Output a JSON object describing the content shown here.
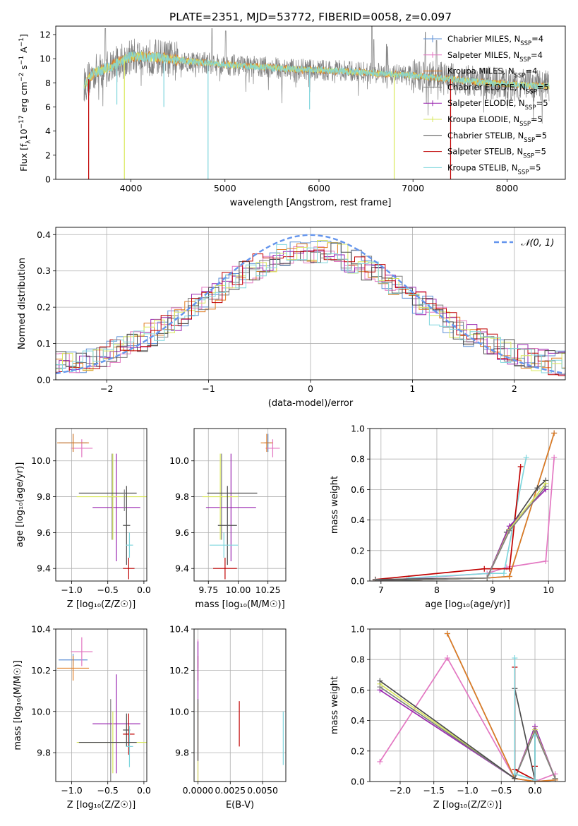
{
  "figure": {
    "title": "PLATE=2351, MJD=53772, FIBERID=0058, z=0.097"
  },
  "colors": {
    "chabrier_miles": "#5b8fd6",
    "salpeter_miles": "#e377c2",
    "kroupa_miles": "#e07b1f",
    "chabrier_elodie": "#7f7f7f",
    "salpeter_elodie": "#9a27b0",
    "kroupa_elodie": "#d9e85c",
    "chabrier_stelib": "#4d4d4d",
    "salpeter_stelib": "#c00000",
    "kroupa_stelib": "#7fd6dd",
    "normal_curve": "#6495ed",
    "grid": "#b0b0b0"
  },
  "chart_data": [
    {
      "type": "line",
      "id": "spectrum",
      "xlabel": "wavelength [Angstrom, rest frame]",
      "ylabel_parts": [
        "Flux [f",
        "λ",
        "10",
        "−17",
        " erg cm",
        "−2",
        " s",
        "−1",
        " A",
        "−1",
        "]"
      ],
      "xlim": [
        3200,
        8620
      ],
      "ylim": [
        0,
        12.7
      ],
      "xticks": [
        4000,
        5000,
        6000,
        7000,
        8000
      ],
      "yticks": [
        0,
        2,
        4,
        6,
        8,
        10,
        12
      ],
      "grid": false,
      "legend_placement": "top-right",
      "legend": [
        {
          "label": "Chabrier MILES, N",
          "sub": "SSP",
          "tail": "=4",
          "color_key": "chabrier_miles",
          "marker": "|"
        },
        {
          "label": "Salpeter MILES, N",
          "sub": "SSP",
          "tail": "=4",
          "color_key": "salpeter_miles",
          "marker": "+"
        },
        {
          "label": "Kroupa MILES, N",
          "sub": "SSP",
          "tail": "=4",
          "color_key": "kroupa_miles",
          "marker": ""
        },
        {
          "label": "Chabrier ELODIE, N",
          "sub": "SSP",
          "tail": "=5",
          "color_key": "chabrier_elodie",
          "marker": ""
        },
        {
          "label": "Salpeter ELODIE, N",
          "sub": "SSP",
          "tail": "=5",
          "color_key": "salpeter_elodie",
          "marker": "+"
        },
        {
          "label": "Kroupa ELODIE, N",
          "sub": "SSP",
          "tail": "=5",
          "color_key": "kroupa_elodie",
          "marker": "+"
        },
        {
          "label": "Chabrier STELIB, N",
          "sub": "SSP",
          "tail": "=5",
          "color_key": "chabrier_stelib",
          "marker": ""
        },
        {
          "label": "Salpeter STELIB, N",
          "sub": "SSP",
          "tail": "=5",
          "color_key": "salpeter_stelib",
          "marker": ""
        },
        {
          "label": "Kroupa STELIB, N",
          "sub": "SSP",
          "tail": "=5",
          "color_key": "kroupa_stelib",
          "marker": ""
        }
      ],
      "data_range": [
        3500,
        8450
      ],
      "continuum": [
        [
          3480,
          7.6
        ],
        [
          3600,
          8.8
        ],
        [
          3800,
          9.4
        ],
        [
          4000,
          10.2
        ],
        [
          4300,
          10.1
        ],
        [
          4600,
          9.8
        ],
        [
          5000,
          9.5
        ],
        [
          5400,
          9.3
        ],
        [
          5800,
          9.1
        ],
        [
          6200,
          9.0
        ],
        [
          6600,
          8.8
        ],
        [
          7000,
          8.6
        ],
        [
          7400,
          8.3
        ],
        [
          7800,
          8.0
        ],
        [
          8200,
          7.8
        ],
        [
          8450,
          7.7
        ]
      ],
      "noise_amplitude": 1.2,
      "emission_lines": [
        [
          3727,
          12.5
        ],
        [
          4861,
          12.5
        ],
        [
          5007,
          12.3
        ],
        [
          6563,
          12.7
        ],
        [
          6583,
          11.6
        ],
        [
          6717,
          11.2
        ],
        [
          6731,
          11.0
        ],
        [
          7130,
          12.2
        ],
        [
          7250,
          11.5
        ]
      ],
      "dips": [
        {
          "x": 3550,
          "min": 0.0,
          "color_key": "salpeter_stelib"
        },
        {
          "x": 3930,
          "min": 0.0,
          "color_key": "kroupa_elodie"
        },
        {
          "x": 4820,
          "min": 0.0,
          "color_key": "kroupa_stelib"
        },
        {
          "x": 6800,
          "min": 0.0,
          "color_key": "kroupa_elodie"
        },
        {
          "x": 7400,
          "min": 0.0,
          "color_key": "salpeter_stelib"
        },
        {
          "x": 4350,
          "min": 6.0,
          "color_key": "kroupa_stelib"
        },
        {
          "x": 5900,
          "min": 5.8,
          "color_key": "kroupa_stelib"
        },
        {
          "x": 3850,
          "min": 6.2,
          "color_key": "kroupa_stelib"
        }
      ]
    },
    {
      "type": "line",
      "id": "residual_histogram",
      "xlabel": "(data-model)/error",
      "ylabel": "Normed distribution",
      "xlim": [
        -2.5,
        2.5
      ],
      "ylim": [
        0,
        0.42
      ],
      "xticks": [
        -2,
        -1,
        0,
        1,
        2
      ],
      "yticks": [
        0.0,
        0.1,
        0.2,
        0.3,
        0.4
      ],
      "grid": true,
      "legend_placement": "top-right",
      "legend": [
        {
          "label": "𝒩(0, 1)",
          "color_key": "normal_curve",
          "style": "dashed"
        }
      ],
      "bin_width": 0.1,
      "series_color_keys": [
        "chabrier_miles",
        "salpeter_miles",
        "kroupa_miles",
        "chabrier_elodie",
        "salpeter_elodie",
        "kroupa_elodie",
        "chabrier_stelib",
        "salpeter_stelib",
        "kroupa_stelib"
      ],
      "jitter": 0.035
    },
    {
      "type": "scatter",
      "id": "age_vs_Z",
      "xlabel": "Z [log₁₀(Z/Z☉)]",
      "ylabel": "age  [log₁₀(age/yr)]",
      "xlim": [
        -1.22,
        0.04
      ],
      "ylim": [
        9.33,
        10.18
      ],
      "xticks": [
        -1.0,
        -0.5,
        0.0
      ],
      "yticks": [
        9.4,
        9.6,
        9.8,
        10.0
      ],
      "grid": true,
      "points": [
        {
          "color_key": "chabrier_miles",
          "x": -0.98,
          "y": 10.1,
          "xerr": 0.2,
          "yerr": 0.05
        },
        {
          "color_key": "salpeter_miles",
          "x": -0.86,
          "y": 10.07,
          "xerr": 0.15,
          "yerr": 0.05
        },
        {
          "color_key": "kroupa_miles",
          "x": -0.98,
          "y": 10.1,
          "xerr": 0.22,
          "yerr": 0.05
        },
        {
          "color_key": "chabrier_elodie",
          "x": -0.44,
          "y": 9.8,
          "xerr": 0.05,
          "yerr": 0.24
        },
        {
          "color_key": "salpeter_elodie",
          "x": -0.38,
          "y": 9.74,
          "xerr": 0.33,
          "yerr": 0.3
        },
        {
          "color_key": "kroupa_elodie",
          "x": -0.43,
          "y": 9.8,
          "xerr": 0.5,
          "yerr": 0.24
        },
        {
          "color_key": "chabrier_stelib",
          "x": -0.24,
          "y": 9.64,
          "xerr": 0.05,
          "yerr": 0.22
        },
        {
          "color_key": "salpeter_stelib",
          "x": -0.21,
          "y": 9.4,
          "xerr": 0.08,
          "yerr": 0.06
        },
        {
          "color_key": "kroupa_stelib",
          "x": -0.2,
          "y": 9.53,
          "xerr": 0.05,
          "yerr": 0.07
        },
        {
          "color_key": "chabrier_stelib",
          "x": -0.5,
          "y": 9.82,
          "xerr": 0.4,
          "yerr": 0.0
        },
        {
          "color_key": "chabrier_elodie",
          "x": -0.27,
          "y": 9.78,
          "xerr": 0.0,
          "yerr": 0.06
        }
      ]
    },
    {
      "type": "scatter",
      "id": "age_vs_mass",
      "xlabel": "mass [log₁₀(M/M☉)]",
      "ylabel": "",
      "xlim": [
        9.63,
        10.4
      ],
      "ylim": [
        9.33,
        10.18
      ],
      "xticks": [
        9.75,
        10.0,
        10.25
      ],
      "yticks": [
        9.4,
        9.6,
        9.8,
        10.0
      ],
      "grid": true,
      "points": [
        {
          "color_key": "chabrier_miles",
          "x": 10.25,
          "y": 10.1,
          "xerr": 0.03,
          "yerr": 0.05
        },
        {
          "color_key": "salpeter_miles",
          "x": 10.29,
          "y": 10.07,
          "xerr": 0.06,
          "yerr": 0.05
        },
        {
          "color_key": "kroupa_miles",
          "x": 10.24,
          "y": 10.1,
          "xerr": 0.05,
          "yerr": 0.05
        },
        {
          "color_key": "chabrier_elodie",
          "x": 9.86,
          "y": 9.8,
          "xerr": 0.01,
          "yerr": 0.24
        },
        {
          "color_key": "salpeter_elodie",
          "x": 9.94,
          "y": 9.74,
          "xerr": 0.21,
          "yerr": 0.3
        },
        {
          "color_key": "kroupa_elodie",
          "x": 9.85,
          "y": 9.8,
          "xerr": 0.15,
          "yerr": 0.24
        },
        {
          "color_key": "chabrier_stelib",
          "x": 9.91,
          "y": 9.64,
          "xerr": 0.08,
          "yerr": 0.22
        },
        {
          "color_key": "salpeter_stelib",
          "x": 9.89,
          "y": 9.4,
          "xerr": 0.1,
          "yerr": 0.06
        },
        {
          "color_key": "kroupa_stelib",
          "x": 9.88,
          "y": 9.53,
          "xerr": 0.12,
          "yerr": 0.07
        },
        {
          "color_key": "chabrier_stelib",
          "x": 9.95,
          "y": 9.82,
          "xerr": 0.21,
          "yerr": 0.0
        }
      ]
    },
    {
      "type": "line",
      "id": "mass_weight_vs_age",
      "xlabel": "age  [log₁₀(age/yr)]",
      "ylabel": "mass weight",
      "xlim": [
        6.8,
        10.3
      ],
      "ylim": [
        0,
        1.0
      ],
      "xticks": [
        7,
        8,
        9,
        10
      ],
      "yticks": [
        0.0,
        0.2,
        0.4,
        0.6,
        0.8,
        1.0
      ],
      "grid": true,
      "series": [
        {
          "color_key": "salpeter_miles",
          "x": [
            6.9,
            8.9,
            9.25,
            9.95,
            10.1
          ],
          "y": [
            0.0,
            0.05,
            0.09,
            0.13,
            0.81
          ]
        },
        {
          "color_key": "chabrier_miles",
          "x": [
            6.9,
            8.9,
            9.3,
            10.1
          ],
          "y": [
            0.0,
            0.02,
            0.03,
            0.97
          ]
        },
        {
          "color_key": "kroupa_miles",
          "x": [
            6.9,
            8.9,
            9.3,
            10.1
          ],
          "y": [
            0.0,
            0.02,
            0.03,
            0.97
          ]
        },
        {
          "color_key": "kroupa_stelib",
          "x": [
            7.5,
            8.95,
            9.2,
            9.6
          ],
          "y": [
            0.02,
            0.05,
            0.05,
            0.81
          ]
        },
        {
          "color_key": "salpeter_stelib",
          "x": [
            6.9,
            8.85,
            9.3,
            9.5
          ],
          "y": [
            0.01,
            0.08,
            0.08,
            0.75
          ]
        },
        {
          "color_key": "chabrier_stelib",
          "x": [
            6.9,
            8.9,
            9.25,
            9.8,
            9.95
          ],
          "y": [
            0.01,
            0.02,
            0.32,
            0.61,
            0.66
          ]
        },
        {
          "color_key": "salpeter_elodie",
          "x": [
            6.9,
            8.9,
            9.3,
            9.95
          ],
          "y": [
            0.0,
            0.02,
            0.36,
            0.6
          ]
        },
        {
          "color_key": "kroupa_elodie",
          "x": [
            6.9,
            8.9,
            9.3,
            9.95
          ],
          "y": [
            0.0,
            0.02,
            0.34,
            0.64
          ]
        },
        {
          "color_key": "chabrier_elodie",
          "x": [
            6.9,
            8.9,
            9.3,
            9.95
          ],
          "y": [
            0.0,
            0.02,
            0.33,
            0.62
          ]
        }
      ]
    },
    {
      "type": "scatter",
      "id": "mass_vs_Z",
      "xlabel": "Z [log₁₀(Z/Z☉)]",
      "ylabel": "mass [log₁₀(M/M☉)]",
      "xlim": [
        -1.22,
        0.04
      ],
      "ylim": [
        9.66,
        10.4
      ],
      "xticks": [
        -1.0,
        -0.5,
        0.0
      ],
      "yticks": [
        9.8,
        10.0,
        10.2,
        10.4
      ],
      "grid": true,
      "points": [
        {
          "color_key": "chabrier_miles",
          "x": -0.98,
          "y": 10.25,
          "xerr": 0.2,
          "yerr": 0.03
        },
        {
          "color_key": "salpeter_miles",
          "x": -0.86,
          "y": 10.29,
          "xerr": 0.15,
          "yerr": 0.07
        },
        {
          "color_key": "kroupa_miles",
          "x": -0.98,
          "y": 10.21,
          "xerr": 0.22,
          "yerr": 0.06
        },
        {
          "color_key": "chabrier_elodie",
          "x": -0.46,
          "y": 9.86,
          "xerr": 0.0,
          "yerr": 0.2
        },
        {
          "color_key": "salpeter_elodie",
          "x": -0.38,
          "y": 9.94,
          "xerr": 0.33,
          "yerr": 0.24
        },
        {
          "color_key": "kroupa_elodie",
          "x": -0.43,
          "y": 9.85,
          "xerr": 0.5,
          "yerr": 0.15
        },
        {
          "color_key": "chabrier_stelib",
          "x": -0.24,
          "y": 9.91,
          "xerr": 0.05,
          "yerr": 0.08
        },
        {
          "color_key": "salpeter_stelib",
          "x": -0.21,
          "y": 9.89,
          "xerr": 0.08,
          "yerr": 0.1
        },
        {
          "color_key": "kroupa_stelib",
          "x": -0.2,
          "y": 9.83,
          "xerr": 0.05,
          "yerr": 0.1
        },
        {
          "color_key": "chabrier_stelib",
          "x": -0.5,
          "y": 9.85,
          "xerr": 0.4,
          "yerr": 0.0
        }
      ]
    },
    {
      "type": "scatter",
      "id": "mass_vs_EBV",
      "xlabel": "E(B-V)",
      "ylabel": "",
      "xlim": [
        -0.0003,
        0.0068
      ],
      "ylim": [
        9.66,
        10.4
      ],
      "xticks": [
        0.0,
        0.0025,
        0.005
      ],
      "xtick_labels": [
        "0.0000",
        "0.0025",
        "0.0050"
      ],
      "yticks": [
        9.8,
        10.0,
        10.2,
        10.4
      ],
      "grid": true,
      "points": [
        {
          "color_key": "salpeter_miles",
          "x": 0.0,
          "y": 10.28,
          "xerr": 0.0,
          "yerr": 0.07
        },
        {
          "color_key": "kroupa_miles",
          "x": 0.0,
          "y": 10.21,
          "xerr": 0.0,
          "yerr": 0.06
        },
        {
          "color_key": "salpeter_elodie",
          "x": 0.0,
          "y": 9.94,
          "xerr": 0.0,
          "yerr": 0.4
        },
        {
          "color_key": "kroupa_elodie",
          "x": 0.0,
          "y": 9.85,
          "xerr": 0.0,
          "yerr": 0.19
        },
        {
          "color_key": "chabrier_stelib",
          "x": 0.0,
          "y": 9.91,
          "xerr": 0.0,
          "yerr": 0.15
        },
        {
          "color_key": "salpeter_stelib",
          "x": 0.0032,
          "y": 9.94,
          "xerr": 0.0,
          "yerr": 0.11
        },
        {
          "color_key": "kroupa_stelib",
          "x": 0.0066,
          "y": 9.87,
          "xerr": 0.0,
          "yerr": 0.13
        }
      ]
    },
    {
      "type": "line",
      "id": "mass_weight_vs_Z",
      "xlabel": "Z [log₁₀(Z/Z☉)]",
      "ylabel": "mass weight",
      "xlim": [
        -2.45,
        0.45
      ],
      "ylim": [
        0,
        1.0
      ],
      "xticks": [
        -2.0,
        -1.5,
        -1.0,
        -0.5,
        0.0
      ],
      "xtick_labels": [
        "−2.0",
        "−1.5",
        "−1.0",
        "−0.5",
        "0.0"
      ],
      "yticks": [
        0.0,
        0.2,
        0.4,
        0.6,
        0.8,
        1.0
      ],
      "grid": true,
      "series": [
        {
          "color_key": "salpeter_miles",
          "x": [
            -2.3,
            -1.3,
            -0.3,
            0.0,
            0.3
          ],
          "y": [
            0.13,
            0.81,
            0.02,
            0.0,
            0.05
          ]
        },
        {
          "color_key": "chabrier_miles",
          "x": [
            -1.3,
            -0.3,
            0.0,
            0.3
          ],
          "y": [
            0.97,
            0.02,
            0.0,
            0.01
          ]
        },
        {
          "color_key": "kroupa_miles",
          "x": [
            -1.3,
            -0.3,
            0.0,
            0.3
          ],
          "y": [
            0.97,
            0.02,
            0.0,
            0.01
          ]
        },
        {
          "color_key": "salpeter_elodie",
          "x": [
            -2.3,
            -0.3,
            0.0,
            0.3
          ],
          "y": [
            0.6,
            0.02,
            0.36,
            0.02
          ]
        },
        {
          "color_key": "kroupa_elodie",
          "x": [
            -2.3,
            -0.3,
            0.0,
            0.3
          ],
          "y": [
            0.64,
            0.02,
            0.34,
            0.02
          ]
        },
        {
          "color_key": "chabrier_elodie",
          "x": [
            -2.3,
            -0.3,
            0.0,
            0.3
          ],
          "y": [
            0.62,
            0.02,
            0.33,
            0.02
          ]
        },
        {
          "color_key": "chabrier_stelib",
          "x": [
            -2.3,
            -0.3,
            -0.3,
            0.0,
            0.0
          ],
          "y": [
            0.66,
            0.02,
            0.61,
            0.01,
            0.3
          ]
        },
        {
          "color_key": "salpeter_stelib",
          "x": [
            -0.3,
            -0.3,
            0.0,
            0.0
          ],
          "y": [
            0.75,
            0.08,
            0.01,
            0.1
          ]
        },
        {
          "color_key": "kroupa_stelib",
          "x": [
            -0.3,
            -0.3,
            0.0,
            0.0
          ],
          "y": [
            0.81,
            0.05,
            0.01,
            0.3
          ]
        }
      ]
    }
  ]
}
